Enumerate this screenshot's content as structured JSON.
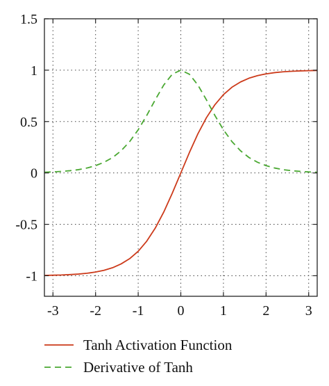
{
  "chart_data": {
    "type": "line",
    "title": "",
    "xlabel": "",
    "ylabel": "",
    "xlim": [
      -3.2,
      3.2
    ],
    "ylim": [
      -1.2,
      1.5
    ],
    "grid": true,
    "grid_style": "dotted",
    "legend_placement": "bottom",
    "x_ticks": [
      -3,
      -2,
      -1,
      0,
      1,
      2,
      3
    ],
    "x_tick_labels": [
      "-3",
      "-2",
      "-1",
      "0",
      "1",
      "2",
      "3"
    ],
    "y_ticks": [
      -1,
      -0.5,
      0,
      0.5,
      1,
      1.5
    ],
    "y_tick_labels": [
      "-1",
      "-0.5",
      "0",
      "0.5",
      "1",
      "1.5"
    ],
    "x": [
      -3.2,
      -3.0,
      -2.8,
      -2.6,
      -2.4,
      -2.2,
      -2.0,
      -1.8,
      -1.6,
      -1.4,
      -1.2,
      -1.0,
      -0.8,
      -0.6,
      -0.4,
      -0.2,
      0.0,
      0.2,
      0.4,
      0.6,
      0.8,
      1.0,
      1.2,
      1.4,
      1.6,
      1.8,
      2.0,
      2.2,
      2.4,
      2.6,
      2.8,
      3.0,
      3.2
    ],
    "series": [
      {
        "name": "Tanh Activation Function",
        "color": "#cc3a1a",
        "style": "solid",
        "values": [
          -0.997,
          -0.995,
          -0.993,
          -0.989,
          -0.984,
          -0.976,
          -0.964,
          -0.947,
          -0.922,
          -0.885,
          -0.834,
          -0.762,
          -0.664,
          -0.537,
          -0.38,
          -0.197,
          0.0,
          0.197,
          0.38,
          0.537,
          0.664,
          0.762,
          0.834,
          0.885,
          0.922,
          0.947,
          0.964,
          0.976,
          0.984,
          0.989,
          0.993,
          0.995,
          0.997
        ]
      },
      {
        "name": "Derivative of Tanh",
        "color": "#4aa832",
        "style": "dashed",
        "values": [
          0.007,
          0.01,
          0.015,
          0.022,
          0.032,
          0.048,
          0.071,
          0.104,
          0.15,
          0.216,
          0.305,
          0.42,
          0.559,
          0.712,
          0.856,
          0.961,
          1.0,
          0.961,
          0.856,
          0.712,
          0.559,
          0.42,
          0.305,
          0.216,
          0.15,
          0.104,
          0.071,
          0.048,
          0.032,
          0.022,
          0.015,
          0.01,
          0.007
        ]
      }
    ]
  }
}
